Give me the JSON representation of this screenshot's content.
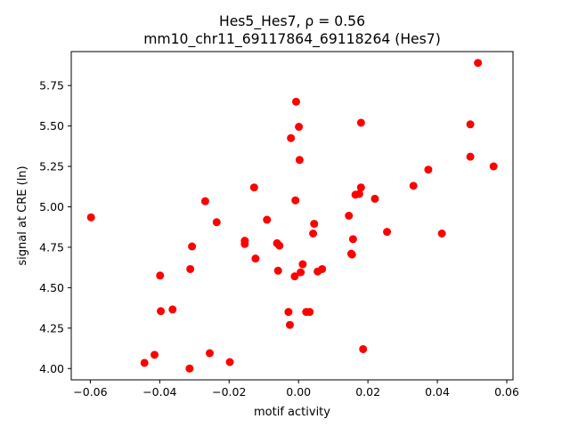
{
  "chart_data": {
    "type": "scatter",
    "title": "Hes5_Hes7, ρ = 0.56",
    "subtitle": "mm10_chr11_69117864_69118264 (Hes7)",
    "xlabel": "motif activity",
    "ylabel": "signal at CRE (ln)",
    "xlim": [
      -0.0655,
      0.0618
    ],
    "ylim": [
      3.93,
      5.96
    ],
    "xticks": [
      -0.06,
      -0.04,
      -0.02,
      0.0,
      0.02,
      0.04,
      0.06
    ],
    "xtick_labels": [
      "−0.06",
      "−0.04",
      "−0.02",
      "0.00",
      "0.02",
      "0.04",
      "0.06"
    ],
    "yticks": [
      4.0,
      4.25,
      4.5,
      4.75,
      5.0,
      5.25,
      5.5,
      5.75
    ],
    "ytick_labels": [
      "4.00",
      "4.25",
      "4.50",
      "4.75",
      "5.00",
      "5.25",
      "5.50",
      "5.75"
    ],
    "grid": false,
    "marker_color": "#ff0000",
    "points": [
      {
        "x": -0.0598,
        "y": 4.935
      },
      {
        "x": -0.0444,
        "y": 4.035
      },
      {
        "x": -0.0415,
        "y": 4.085
      },
      {
        "x": -0.0399,
        "y": 4.575
      },
      {
        "x": -0.0397,
        "y": 4.355
      },
      {
        "x": -0.0363,
        "y": 4.365
      },
      {
        "x": -0.0314,
        "y": 4.0
      },
      {
        "x": -0.0312,
        "y": 4.615
      },
      {
        "x": -0.0307,
        "y": 4.755
      },
      {
        "x": -0.0269,
        "y": 5.035
      },
      {
        "x": -0.0256,
        "y": 4.095
      },
      {
        "x": -0.0236,
        "y": 4.905
      },
      {
        "x": -0.0198,
        "y": 4.04
      },
      {
        "x": -0.0155,
        "y": 4.79
      },
      {
        "x": -0.0155,
        "y": 4.77
      },
      {
        "x": -0.0128,
        "y": 5.12
      },
      {
        "x": -0.0124,
        "y": 4.68
      },
      {
        "x": -0.0091,
        "y": 4.92
      },
      {
        "x": -0.0062,
        "y": 4.775
      },
      {
        "x": -0.0059,
        "y": 4.605
      },
      {
        "x": -0.0055,
        "y": 4.76
      },
      {
        "x": -0.0029,
        "y": 4.35
      },
      {
        "x": -0.0025,
        "y": 4.27
      },
      {
        "x": -0.0022,
        "y": 5.425
      },
      {
        "x": -0.0011,
        "y": 4.57
      },
      {
        "x": -0.0009,
        "y": 5.04
      },
      {
        "x": -0.0007,
        "y": 5.65
      },
      {
        "x": 0.0001,
        "y": 5.495
      },
      {
        "x": 0.0003,
        "y": 5.29
      },
      {
        "x": 0.0006,
        "y": 4.595
      },
      {
        "x": 0.0012,
        "y": 4.645
      },
      {
        "x": 0.0022,
        "y": 4.35
      },
      {
        "x": 0.0032,
        "y": 4.35
      },
      {
        "x": 0.0042,
        "y": 4.835
      },
      {
        "x": 0.0045,
        "y": 4.895
      },
      {
        "x": 0.0055,
        "y": 4.6
      },
      {
        "x": 0.0068,
        "y": 4.615
      },
      {
        "x": 0.0145,
        "y": 4.945
      },
      {
        "x": 0.0152,
        "y": 4.71
      },
      {
        "x": 0.0154,
        "y": 4.705
      },
      {
        "x": 0.0157,
        "y": 4.8
      },
      {
        "x": 0.0164,
        "y": 5.075
      },
      {
        "x": 0.0175,
        "y": 5.08
      },
      {
        "x": 0.018,
        "y": 5.12
      },
      {
        "x": 0.018,
        "y": 5.52
      },
      {
        "x": 0.0186,
        "y": 4.12
      },
      {
        "x": 0.022,
        "y": 5.05
      },
      {
        "x": 0.0255,
        "y": 4.845
      },
      {
        "x": 0.0331,
        "y": 5.13
      },
      {
        "x": 0.0374,
        "y": 5.23
      },
      {
        "x": 0.0413,
        "y": 4.835
      },
      {
        "x": 0.0495,
        "y": 5.31
      },
      {
        "x": 0.0495,
        "y": 5.51
      },
      {
        "x": 0.0517,
        "y": 5.89
      },
      {
        "x": 0.0562,
        "y": 5.25
      }
    ]
  }
}
